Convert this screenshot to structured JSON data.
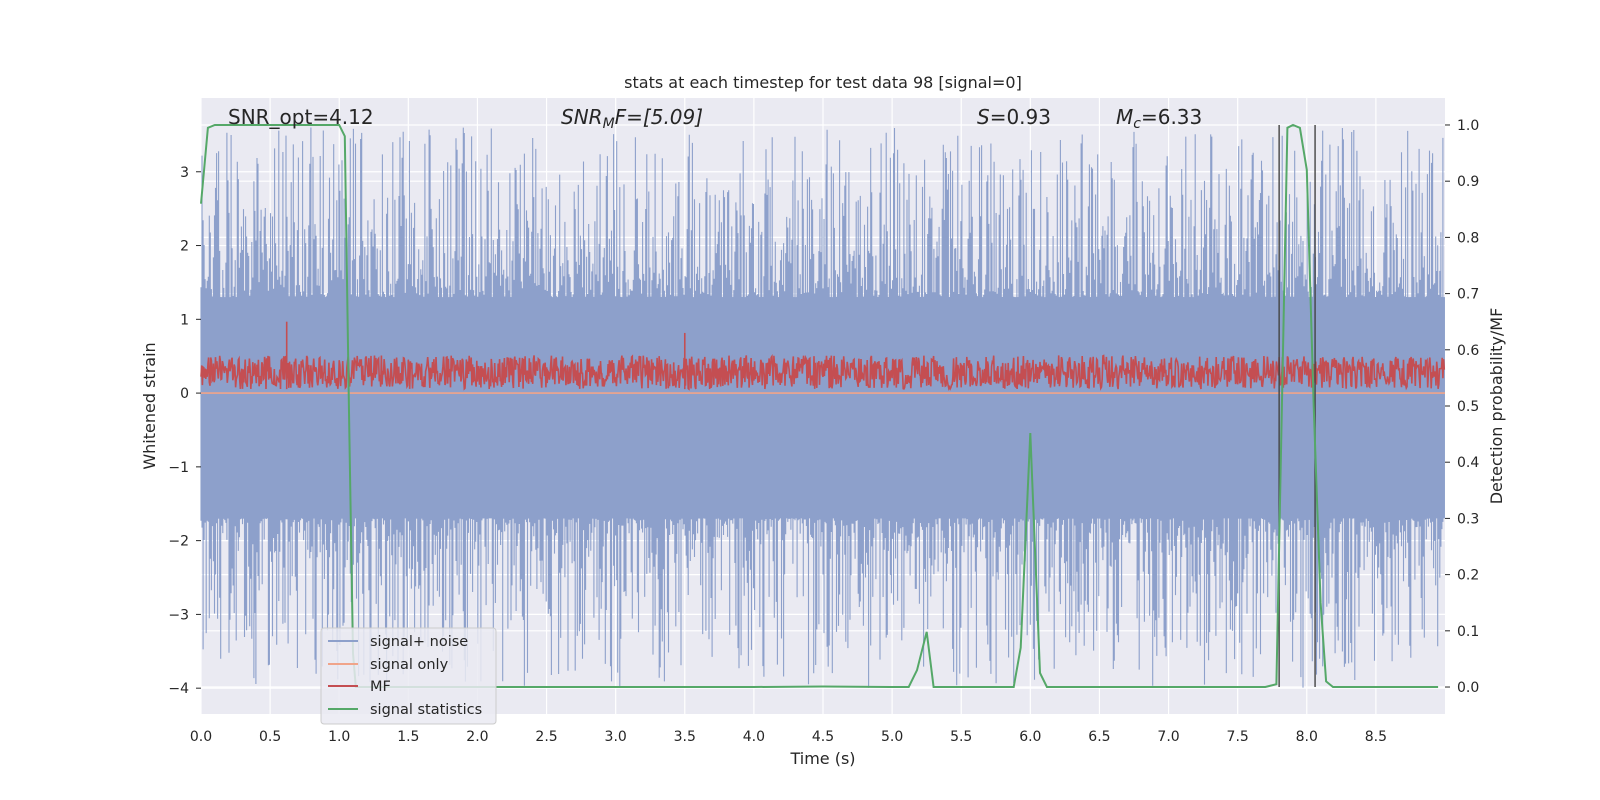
{
  "chart_data": {
    "type": "line",
    "title": "stats at each timestep for test data 98 [signal=0]",
    "xlabel": "Time (s)",
    "ylabel": "Whitened strain",
    "y2label": "Detection probability/MF",
    "xlim": [
      0.0,
      9.0
    ],
    "ylim": [
      -4.35,
      4.0
    ],
    "y2lim": [
      -0.048,
      1.048
    ],
    "grid": true,
    "legend_position": "lower-left",
    "x_ticks": [
      "0.0",
      "0.5",
      "1.0",
      "1.5",
      "2.0",
      "2.5",
      "3.0",
      "3.5",
      "4.0",
      "4.5",
      "5.0",
      "5.5",
      "6.0",
      "6.5",
      "7.0",
      "7.5",
      "8.0",
      "8.5"
    ],
    "y_ticks": [
      "3",
      "2",
      "1",
      "0",
      "−1",
      "−2",
      "−3",
      "−4"
    ],
    "y2_ticks": [
      "1.0",
      "0.9",
      "0.8",
      "0.7",
      "0.6",
      "0.5",
      "0.4",
      "0.3",
      "0.2",
      "0.1",
      "0.0"
    ],
    "annotations": {
      "snr_opt": "SNR_opt=4.12",
      "snr_mf": {
        "main": "SNR",
        "sub": "M",
        "rest": "F=[5.09]"
      },
      "s_value": {
        "main": "S",
        "rest": "=0.93"
      },
      "mc_value": {
        "main": "M",
        "sub": "c",
        "rest": "=6.33"
      }
    },
    "series": [
      {
        "name": "signal+ noise",
        "color": "#8da0cb",
        "description_axis": "left",
        "envelope": {
          "core": [
            -1.7,
            1.3
          ],
          "peaks_max": 3.6,
          "peaks_min": -4.0
        }
      },
      {
        "name": "signal only",
        "color": "#f0a48a",
        "axis": "left",
        "values_constant": 0.0
      },
      {
        "name": "MF",
        "color": "#c44e52",
        "axis": "right",
        "band": [
          0.53,
          0.59
        ],
        "peaks": [
          [
            0.62,
            0.65
          ],
          [
            3.5,
            0.63
          ]
        ]
      },
      {
        "name": "signal statistics",
        "color": "#55a868",
        "axis": "right",
        "x": [
          0.0,
          0.05,
          0.1,
          0.3,
          0.5,
          0.7,
          0.9,
          1.0,
          1.04,
          1.07,
          1.1,
          1.12,
          1.3,
          2.0,
          3.0,
          4.0,
          4.5,
          5.0,
          5.12,
          5.18,
          5.25,
          5.3,
          5.5,
          5.75,
          5.88,
          5.93,
          6.0,
          6.07,
          6.12,
          6.3,
          7.0,
          7.7,
          7.78,
          7.82,
          7.86,
          7.9,
          7.95,
          8.0,
          8.05,
          8.1,
          8.14,
          8.19,
          8.25,
          8.5,
          8.95
        ],
        "y": [
          0.86,
          0.995,
          1.0,
          1.0,
          1.0,
          1.0,
          1.0,
          1.0,
          0.98,
          0.5,
          0.06,
          0.0,
          0.0,
          0.0,
          0.0,
          0.0,
          0.001,
          0.0,
          0.0,
          0.03,
          0.098,
          0.0,
          0.0,
          0.0,
          0.0,
          0.07,
          0.452,
          0.025,
          0.0,
          0.0,
          0.0,
          0.0,
          0.005,
          0.5,
          0.995,
          1.0,
          0.995,
          0.92,
          0.5,
          0.15,
          0.01,
          0.0,
          0.0,
          0.0,
          0.0
        ]
      }
    ],
    "vlines": [
      7.8,
      8.06
    ]
  }
}
